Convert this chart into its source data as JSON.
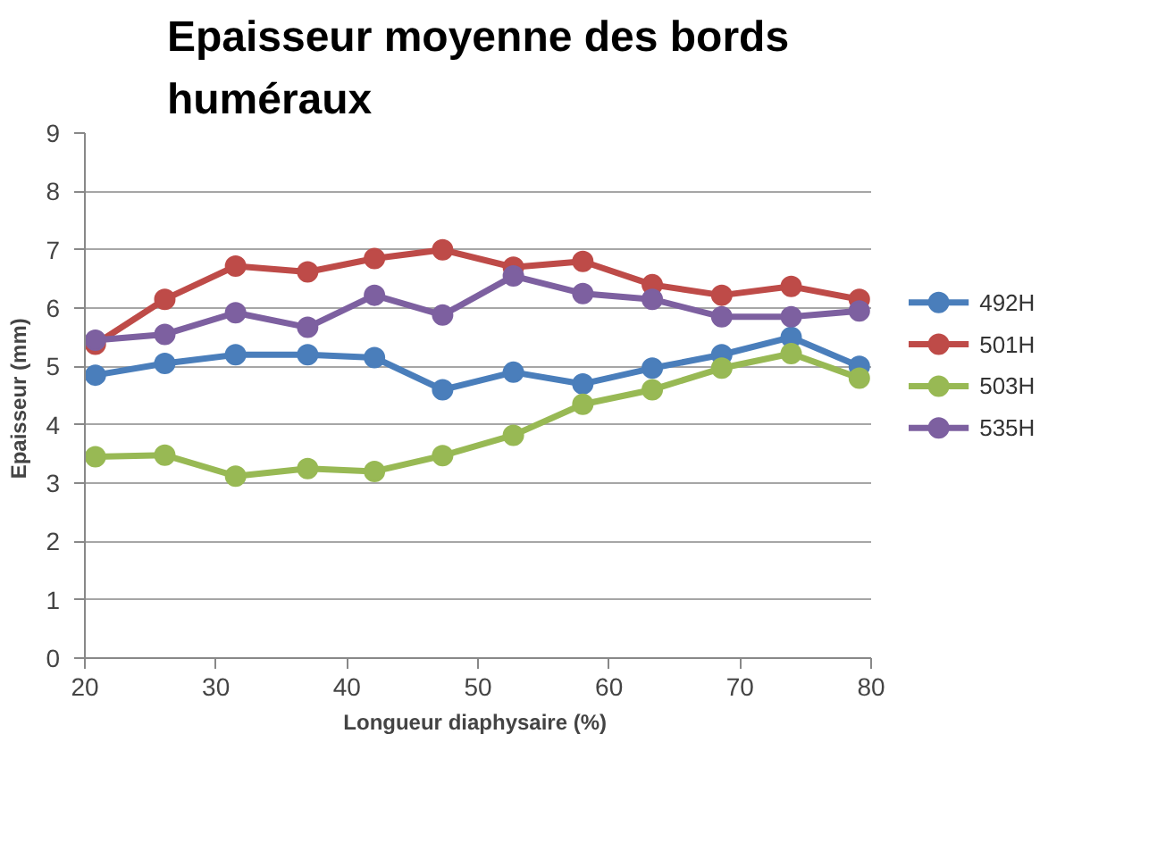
{
  "chart_data": {
    "type": "line",
    "title": "Epaisseur moyenne des bords huméraux",
    "xlabel": "Longueur diaphysaire  (%)",
    "ylabel": "Epaisseur  (mm)",
    "x": [
      20.8,
      26.1,
      31.5,
      37.0,
      42.1,
      47.3,
      52.7,
      58.0,
      63.3,
      68.6,
      73.9,
      79.1
    ],
    "series": [
      {
        "name": "492H",
        "color": "#4a7ebb",
        "values": [
          4.85,
          5.05,
          5.2,
          5.2,
          5.15,
          4.6,
          4.9,
          4.7,
          4.97,
          5.2,
          5.5,
          5.0
        ]
      },
      {
        "name": "501H",
        "color": "#be4b48",
        "values": [
          5.38,
          6.15,
          6.72,
          6.62,
          6.85,
          7.0,
          6.7,
          6.8,
          6.4,
          6.22,
          6.37,
          6.15
        ]
      },
      {
        "name": "503H",
        "color": "#98b954",
        "values": [
          3.45,
          3.48,
          3.12,
          3.25,
          3.2,
          3.47,
          3.82,
          4.35,
          4.6,
          4.97,
          5.22,
          4.8
        ]
      },
      {
        "name": "535H",
        "color": "#7d60a0",
        "values": [
          5.45,
          5.55,
          5.92,
          5.67,
          6.22,
          5.88,
          6.55,
          6.25,
          6.15,
          5.85,
          5.85,
          5.95
        ]
      }
    ],
    "xlim": [
      20,
      80
    ],
    "xticks": [
      20,
      30,
      40,
      50,
      60,
      70,
      80
    ],
    "ylim": [
      0,
      9
    ],
    "yticks": [
      0,
      1,
      2,
      3,
      4,
      5,
      6,
      7,
      8,
      9
    ],
    "grid": "y",
    "legend": "right",
    "marker": "circle",
    "line_style": "solid"
  }
}
